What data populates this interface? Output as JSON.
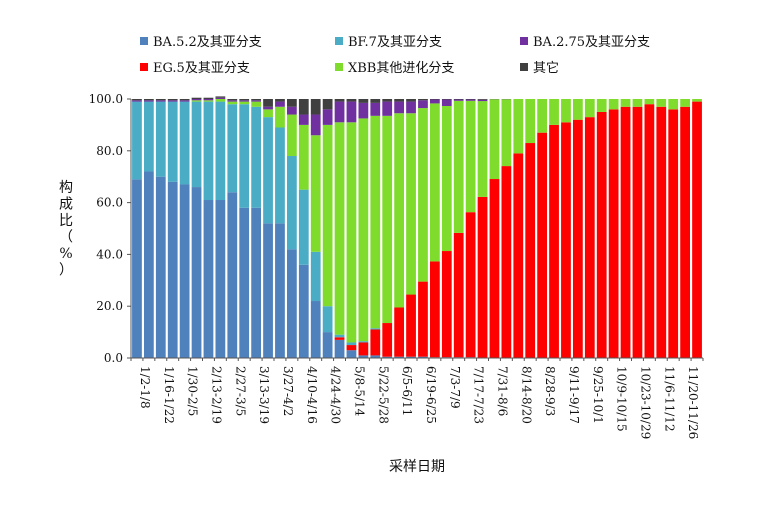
{
  "chart_data": {
    "type": "bar",
    "stacked": true,
    "title": "",
    "xlabel": "采样日期",
    "ylabel": "构成比（%）",
    "ylim": [
      0,
      100
    ],
    "yticks": [
      "0.0",
      "20.0",
      "40.0",
      "60.0",
      "80.0",
      "100.0"
    ],
    "grid": false,
    "legend_position": "top",
    "categories": [
      "1/2-1/8",
      "1/9-1/15",
      "1/16-1/22",
      "1/23-1/29",
      "1/30-2/5",
      "2/6-2/12",
      "2/13-2/19",
      "2/20-2/26",
      "2/27-3/5",
      "3/6-3/12",
      "3/13-3/19",
      "3/20-3/26",
      "3/27-4/2",
      "4/3-4/9",
      "4/10-4/16",
      "4/17-4/23",
      "4/24-4/30",
      "5/1-5/7",
      "5/8-5/14",
      "5/15-5/21",
      "5/22-5/28",
      "5/29-6/4",
      "6/5-6/11",
      "6/12-6/18",
      "6/19-6/25",
      "6/26-7/2",
      "7/3-7/9",
      "7/10-7/16",
      "7/17-7/23",
      "7/24-7/30",
      "7/31-8/6",
      "8/7-8/13",
      "8/14-8/20",
      "8/21-8/27",
      "8/28-9/3",
      "9/4-9/10",
      "9/11-9/17",
      "9/18-9/24",
      "9/25-10/1",
      "10/2-10/8",
      "10/9-10/15",
      "10/16-10/22",
      "10/23-10/29",
      "10/30-11/5",
      "11/6-11/12",
      "11/13-11/19",
      "11/20-11/26",
      "11/27-12/3"
    ],
    "tick_labels": [
      "1/2-1/8",
      "1/16-1/22",
      "1/30-2/5",
      "2/13-2/19",
      "2/27-3/5",
      "3/13-3/19",
      "3/27-4/2",
      "4/10-4/16",
      "4/24-4/30",
      "5/8-5/14",
      "5/22-5/28",
      "6/5-6/11",
      "6/19-6/25",
      "7/3-7/9",
      "7/17-7/23",
      "7/31-8/6",
      "8/14-8/20",
      "8/28-9/3",
      "9/11-9/17",
      "9/25-10/1",
      "10/9-10/15",
      "10/23-10/29",
      "11/6-11/12",
      "11/20-11/26"
    ],
    "series": [
      {
        "name": "BA.5.2及其亚分支",
        "color": "#4F81BD",
        "values": [
          69,
          72,
          70,
          68,
          67,
          66,
          61,
          61,
          64,
          58,
          58,
          52,
          52,
          42,
          36,
          22,
          10,
          7,
          3,
          1,
          1,
          0.5,
          0.5,
          0.5,
          0.5,
          0.3,
          0.3,
          0.3,
          0.3,
          0.2,
          0.1,
          0.1,
          0,
          0,
          0,
          0,
          0,
          0,
          0,
          0,
          0,
          0,
          0,
          0,
          0,
          0,
          0,
          0
        ]
      },
      {
        "name": "EG.5及其亚分支",
        "color": "#FF0000",
        "values": [
          0,
          0,
          0,
          0,
          0,
          0,
          0,
          0,
          0,
          0,
          0,
          0,
          0,
          0,
          0,
          0,
          0,
          1,
          2,
          5,
          10,
          13,
          19,
          24,
          29,
          37,
          41,
          48,
          56,
          62,
          69,
          74,
          79,
          83,
          87,
          90,
          91,
          92,
          93,
          95,
          96,
          97,
          97,
          98,
          97,
          96,
          97,
          99
        ]
      },
      {
        "name": "BF.7及其亚分支",
        "color": "#4BACC6",
        "values": [
          30,
          27,
          29,
          31,
          32,
          33,
          38,
          38,
          34,
          40,
          39,
          41,
          37,
          36,
          29,
          19,
          10,
          1,
          1,
          0.5,
          0.5,
          0,
          0,
          0,
          0,
          0,
          0,
          0,
          0,
          0,
          0,
          0,
          0,
          0,
          0,
          0,
          0,
          0,
          0,
          0,
          0,
          0,
          0,
          0,
          0,
          0,
          0,
          0
        ]
      },
      {
        "name": "XBB其他进化分支",
        "color": "#7FDB2C",
        "values": [
          0,
          0,
          0,
          0,
          0,
          0.5,
          0.5,
          1,
          1,
          1,
          2,
          3,
          8,
          16,
          25,
          45,
          70,
          82,
          85,
          86,
          82,
          80,
          75,
          70,
          67,
          61,
          56,
          51,
          43,
          37,
          30.8,
          25.8,
          21,
          17,
          13,
          10,
          9,
          8,
          7,
          5,
          4,
          3,
          3,
          2,
          3,
          4,
          3,
          1
        ]
      },
      {
        "name": "BA.2.75及其亚分支",
        "color": "#7030A0",
        "values": [
          0.5,
          0.5,
          0.5,
          0.5,
          0.5,
          0.5,
          0.5,
          0.5,
          0.5,
          0.5,
          0.5,
          1,
          2,
          3,
          4,
          8,
          6,
          8,
          8,
          6,
          5,
          5.5,
          4.5,
          4.5,
          3,
          1.5,
          2.5,
          0.5,
          0.5,
          0.5,
          0,
          0,
          0,
          0,
          0,
          0,
          0,
          0,
          0,
          0,
          0,
          0,
          0,
          0,
          0,
          0,
          0,
          0
        ]
      },
      {
        "name": "其它",
        "color": "#404040",
        "values": [
          0.5,
          0.5,
          0.5,
          0.5,
          0.5,
          0.5,
          0.5,
          0.5,
          0.5,
          0.5,
          0.5,
          3,
          1,
          3,
          6,
          6,
          4,
          1,
          1,
          1.5,
          1.5,
          1,
          1,
          1,
          0.5,
          0.2,
          0.2,
          0.2,
          0.2,
          0.3,
          0.1,
          0.1,
          0,
          0,
          0,
          0,
          0,
          0,
          0,
          0,
          0,
          0,
          0,
          0,
          0,
          0,
          0,
          0
        ]
      }
    ],
    "legend": [
      {
        "series": 0,
        "row": 0,
        "col": 0
      },
      {
        "series": 2,
        "row": 0,
        "col": 1
      },
      {
        "series": 4,
        "row": 0,
        "col": 2
      },
      {
        "series": 1,
        "row": 1,
        "col": 0
      },
      {
        "series": 3,
        "row": 1,
        "col": 1
      },
      {
        "series": 5,
        "row": 1,
        "col": 2
      }
    ]
  }
}
